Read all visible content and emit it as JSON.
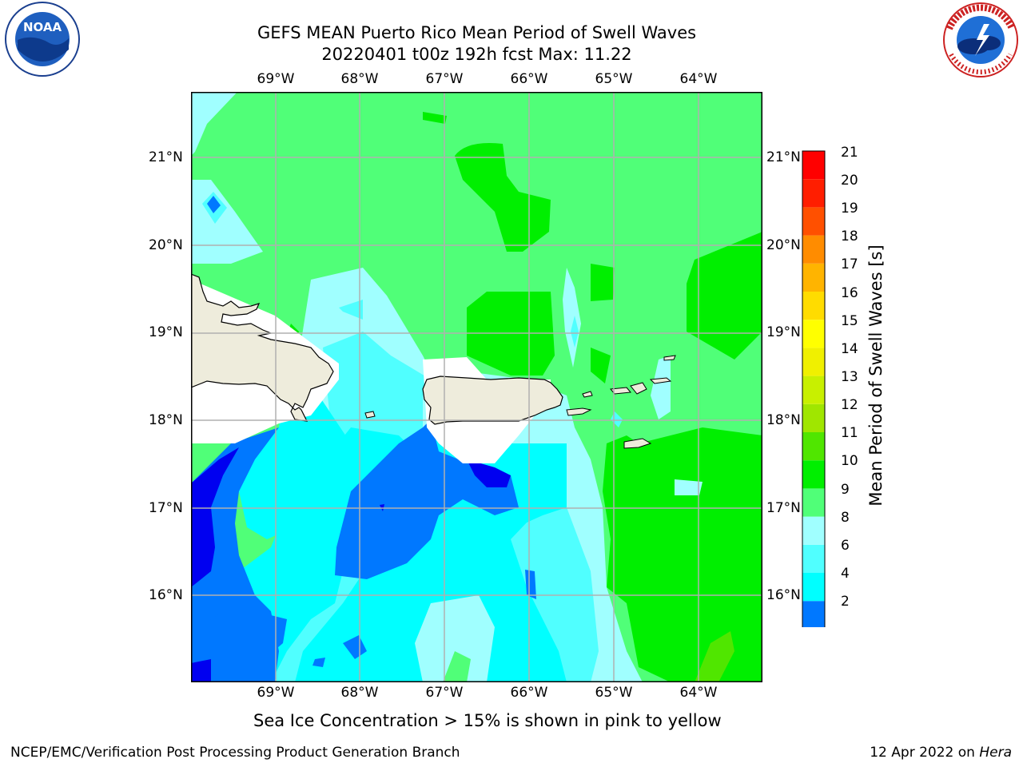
{
  "title_line1": "GEFS MEAN Puerto Rico Mean Period of Swell Waves",
  "title_line2": "20220401 t00z 192h fcst   Max: 11.22",
  "lon_labels": [
    "69°W",
    "68°W",
    "67°W",
    "66°W",
    "65°W",
    "64°W"
  ],
  "lat_labels": [
    "21°N",
    "20°N",
    "19°N",
    "18°N",
    "17°N",
    "16°N"
  ],
  "colorbar": {
    "label": "Mean Period of Swell Waves [s]",
    "ticks": [
      "2",
      "4",
      "6",
      "8",
      "9",
      "10",
      "11",
      "12",
      "13",
      "14",
      "15",
      "16",
      "17",
      "18",
      "19",
      "20",
      "21"
    ],
    "colors": [
      "#0000f0",
      "#0078ff",
      "#00ffff",
      "#50ffff",
      "#a0ffff",
      "#50ff78",
      "#00ef00",
      "#50e600",
      "#a0e600",
      "#c8f000",
      "#f0f000",
      "#ffff00",
      "#ffdc00",
      "#ffb400",
      "#ff8c00",
      "#ff5000",
      "#ff1e00",
      "#ff0000"
    ]
  },
  "note": "Sea Ice Concentration > 15% is shown in pink to yellow",
  "footer_left": "NCEP/EMC/Verification Post Processing Product Generation Branch",
  "footer_right_date": "12 Apr 2022 on",
  "footer_right_machine": "Hera",
  "logos": {
    "noaa_text": "NOAA",
    "nws_ring_text": "NATIONAL WEATHER SERVICE"
  },
  "map_extent": {
    "lon_min": -70,
    "lon_max": -63.3,
    "lat_min": 15,
    "lat_max": 21.7
  }
}
